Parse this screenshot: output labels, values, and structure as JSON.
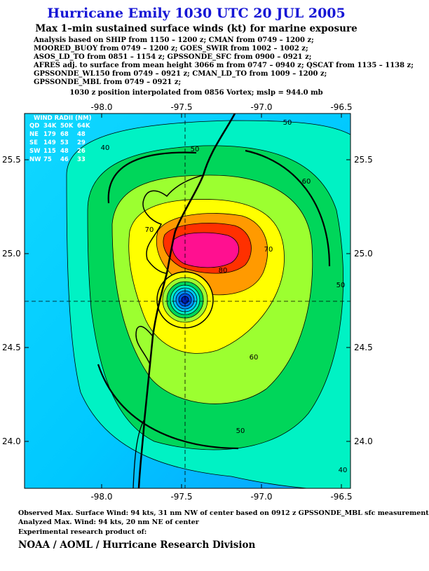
{
  "header": {
    "title": "Hurricane Emily 1030 UTC 20 JUL 2005",
    "subtitle": "Max 1–min sustained surface winds (kt) for marine exposure",
    "analysis_lines": [
      "Analysis based on  SHIP from 1150 – 1200 z;  CMAN from 0749 – 1200 z;",
      "MOORED_BUOY from 0749 – 1200 z;  GOES_SWIR from 1002 – 1002 z;",
      "ASOS_LD_TO from 0851 – 1154 z;  GPSSONDE_SFC from 0900 – 0921 z;",
      "AFRES adj. to surface from mean height 3066 m from 0747 – 0940 z;  QSCAT from 1135 – 1138 z;",
      "GPSSONDE_WL150 from 0749 – 0921 z;  CMAN_LD_TO from 1009 – 1200 z;",
      "GPSSONDE_MBL from 0749 – 0921 z;"
    ],
    "position_note": "1030 z position interpolated from 0856 Vortex; mslp = 944.0 mb"
  },
  "map": {
    "lon_ticks": [
      {
        "value": -98.0,
        "label": "-98.0"
      },
      {
        "value": -97.5,
        "label": "-97.5"
      },
      {
        "value": -97.0,
        "label": "-97.0"
      },
      {
        "value": -96.5,
        "label": "-96.5"
      }
    ],
    "lat_ticks": [
      {
        "value": 25.5,
        "label": "25.5"
      },
      {
        "value": 25.0,
        "label": "25.0"
      },
      {
        "value": 24.5,
        "label": "24.5"
      },
      {
        "value": 24.0,
        "label": "24.0"
      }
    ],
    "wind_radii": {
      "title": "WIND RADII (NM)",
      "header": [
        "QD",
        "34K",
        "50K",
        "64K"
      ],
      "rows": [
        [
          "NE",
          "179",
          "68",
          "48"
        ],
        [
          "SE",
          "149",
          "53",
          "29"
        ],
        [
          "SW",
          "115",
          "48",
          "26"
        ],
        [
          "NW",
          "75",
          "46",
          "33"
        ]
      ]
    },
    "contour_labels": [
      "50",
      "40",
      "50",
      "60",
      "70",
      "70",
      "80",
      "50",
      "60",
      "50",
      "40"
    ]
  },
  "footer": {
    "lines": [
      "Observed Max. Surface Wind: 94 kts, 31 nm NW of center based on 0912 z GPSSONDE_MBL sfc measurement",
      "Analyzed Max. Wind: 94 kts, 20 nm NE of center",
      "Experimental research product of:"
    ],
    "credit": "NOAA / AOML / Hurricane Research Division"
  }
}
